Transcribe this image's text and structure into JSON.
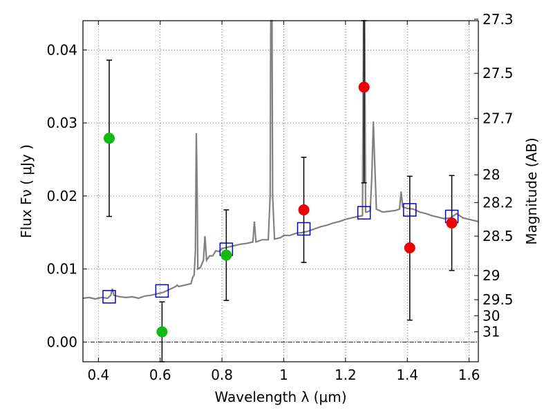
{
  "chart_data": {
    "type": "scatter",
    "xlabel": "Wavelength  λ (μm)",
    "ylabel": "Flux  Fν  ( μJy )",
    "ylabel_right": "Magnitude (AB)",
    "xlim": [
      0.35,
      1.63
    ],
    "ylim": [
      -0.0027,
      0.044
    ],
    "grid": true,
    "x_ticks": [
      {
        "v": 0.4,
        "label": "0.4"
      },
      {
        "v": 0.6,
        "label": "0.6"
      },
      {
        "v": 0.8,
        "label": "0.8"
      },
      {
        "v": 1.0,
        "label": "1"
      },
      {
        "v": 1.2,
        "label": "1.2"
      },
      {
        "v": 1.4,
        "label": "1.4"
      },
      {
        "v": 1.6,
        "label": "1.6"
      }
    ],
    "y_ticks": [
      {
        "v": 0.0,
        "label": "0.00"
      },
      {
        "v": 0.01,
        "label": "0.01"
      },
      {
        "v": 0.02,
        "label": "0.02"
      },
      {
        "v": 0.03,
        "label": "0.03"
      },
      {
        "v": 0.04,
        "label": "0.04"
      }
    ],
    "mag_ticks": [
      {
        "v": 0.0442,
        "label": "27.3"
      },
      {
        "v": 0.0368,
        "label": "27.5"
      },
      {
        "v": 0.0306,
        "label": "27.7"
      },
      {
        "v": 0.0229,
        "label": "28"
      },
      {
        "v": 0.0191,
        "label": "28.2"
      },
      {
        "v": 0.0145,
        "label": "28.5"
      },
      {
        "v": 0.0091,
        "label": "29"
      },
      {
        "v": 0.0058,
        "label": "29.5"
      },
      {
        "v": 0.0036,
        "label": "30"
      },
      {
        "v": 0.0014,
        "label": "31"
      }
    ],
    "colors": {
      "model": "#808080",
      "model_phot": "#0000cc",
      "green": "#11bb11",
      "red": "#ee0000",
      "errorbar": "#000000",
      "grid": "#555555"
    },
    "model_phot": [
      {
        "x": 0.435,
        "y": 0.0062
      },
      {
        "x": 0.606,
        "y": 0.007
      },
      {
        "x": 0.814,
        "y": 0.0127
      },
      {
        "x": 1.065,
        "y": 0.0155
      },
      {
        "x": 1.26,
        "y": 0.0177
      },
      {
        "x": 1.408,
        "y": 0.0181
      },
      {
        "x": 1.544,
        "y": 0.0172
      }
    ],
    "green_points": [
      {
        "x": 0.435,
        "y": 0.0279,
        "lo": 0.0172,
        "hi": 0.0386
      },
      {
        "x": 0.606,
        "y": 0.0014,
        "lo": -0.0027,
        "hi": 0.0055
      },
      {
        "x": 0.814,
        "y": 0.0119,
        "lo": 0.0057,
        "hi": 0.0181
      }
    ],
    "red_points": [
      {
        "x": 1.065,
        "y": 0.0181,
        "lo": 0.0109,
        "hi": 0.0253
      },
      {
        "x": 1.26,
        "y": 0.0349,
        "lo": 0.0218,
        "hi": 0.044
      },
      {
        "x": 1.408,
        "y": 0.0129,
        "lo": 0.003,
        "hi": 0.0227
      },
      {
        "x": 1.544,
        "y": 0.0163,
        "lo": 0.0098,
        "hi": 0.0228
      }
    ],
    "model_spectrum": [
      [
        0.35,
        0.006
      ],
      [
        0.37,
        0.0061
      ],
      [
        0.39,
        0.0059
      ],
      [
        0.41,
        0.0061
      ],
      [
        0.43,
        0.006
      ],
      [
        0.44,
        0.0064
      ],
      [
        0.445,
        0.0073
      ],
      [
        0.45,
        0.0064
      ],
      [
        0.47,
        0.0062
      ],
      [
        0.49,
        0.0061
      ],
      [
        0.51,
        0.0062
      ],
      [
        0.53,
        0.006
      ],
      [
        0.55,
        0.0063
      ],
      [
        0.57,
        0.0064
      ],
      [
        0.59,
        0.0066
      ],
      [
        0.61,
        0.0068
      ],
      [
        0.63,
        0.0072
      ],
      [
        0.64,
        0.0074
      ],
      [
        0.65,
        0.0076
      ],
      [
        0.655,
        0.0078
      ],
      [
        0.66,
        0.0076
      ],
      [
        0.68,
        0.0078
      ],
      [
        0.7,
        0.008
      ],
      [
        0.705,
        0.0088
      ],
      [
        0.71,
        0.0092
      ],
      [
        0.714,
        0.0125
      ],
      [
        0.717,
        0.0286
      ],
      [
        0.72,
        0.02
      ],
      [
        0.722,
        0.01
      ],
      [
        0.73,
        0.0102
      ],
      [
        0.74,
        0.0112
      ],
      [
        0.745,
        0.0145
      ],
      [
        0.75,
        0.0112
      ],
      [
        0.76,
        0.0118
      ],
      [
        0.77,
        0.0118
      ],
      [
        0.78,
        0.0125
      ],
      [
        0.79,
        0.0124
      ],
      [
        0.8,
        0.0128
      ],
      [
        0.82,
        0.013
      ],
      [
        0.84,
        0.0132
      ],
      [
        0.86,
        0.0134
      ],
      [
        0.88,
        0.0135
      ],
      [
        0.9,
        0.0137
      ],
      [
        0.905,
        0.0165
      ],
      [
        0.91,
        0.0137
      ],
      [
        0.93,
        0.014
      ],
      [
        0.95,
        0.014
      ],
      [
        0.956,
        0.02
      ],
      [
        0.958,
        0.045
      ],
      [
        0.962,
        0.045
      ],
      [
        0.964,
        0.02
      ],
      [
        0.97,
        0.0141
      ],
      [
        0.99,
        0.0143
      ],
      [
        1.0,
        0.0146
      ],
      [
        1.02,
        0.0146
      ],
      [
        1.04,
        0.0149
      ],
      [
        1.06,
        0.015
      ],
      [
        1.08,
        0.0152
      ],
      [
        1.1,
        0.0155
      ],
      [
        1.12,
        0.0158
      ],
      [
        1.14,
        0.016
      ],
      [
        1.16,
        0.0163
      ],
      [
        1.18,
        0.0165
      ],
      [
        1.2,
        0.0168
      ],
      [
        1.22,
        0.017
      ],
      [
        1.24,
        0.0172
      ],
      [
        1.255,
        0.0173
      ],
      [
        1.258,
        0.045
      ],
      [
        1.262,
        0.045
      ],
      [
        1.265,
        0.0178
      ],
      [
        1.27,
        0.0178
      ],
      [
        1.28,
        0.018
      ],
      [
        1.285,
        0.0225
      ],
      [
        1.29,
        0.0302
      ],
      [
        1.295,
        0.024
      ],
      [
        1.3,
        0.0182
      ],
      [
        1.32,
        0.0178
      ],
      [
        1.34,
        0.0179
      ],
      [
        1.36,
        0.018
      ],
      [
        1.375,
        0.0182
      ],
      [
        1.38,
        0.0206
      ],
      [
        1.385,
        0.0185
      ],
      [
        1.4,
        0.0183
      ],
      [
        1.42,
        0.0182
      ],
      [
        1.44,
        0.0178
      ],
      [
        1.46,
        0.0176
      ],
      [
        1.48,
        0.0173
      ],
      [
        1.5,
        0.0171
      ],
      [
        1.52,
        0.0169
      ],
      [
        1.54,
        0.017
      ],
      [
        1.56,
        0.0176
      ],
      [
        1.58,
        0.017
      ],
      [
        1.6,
        0.0168
      ],
      [
        1.63,
        0.0165
      ]
    ]
  }
}
